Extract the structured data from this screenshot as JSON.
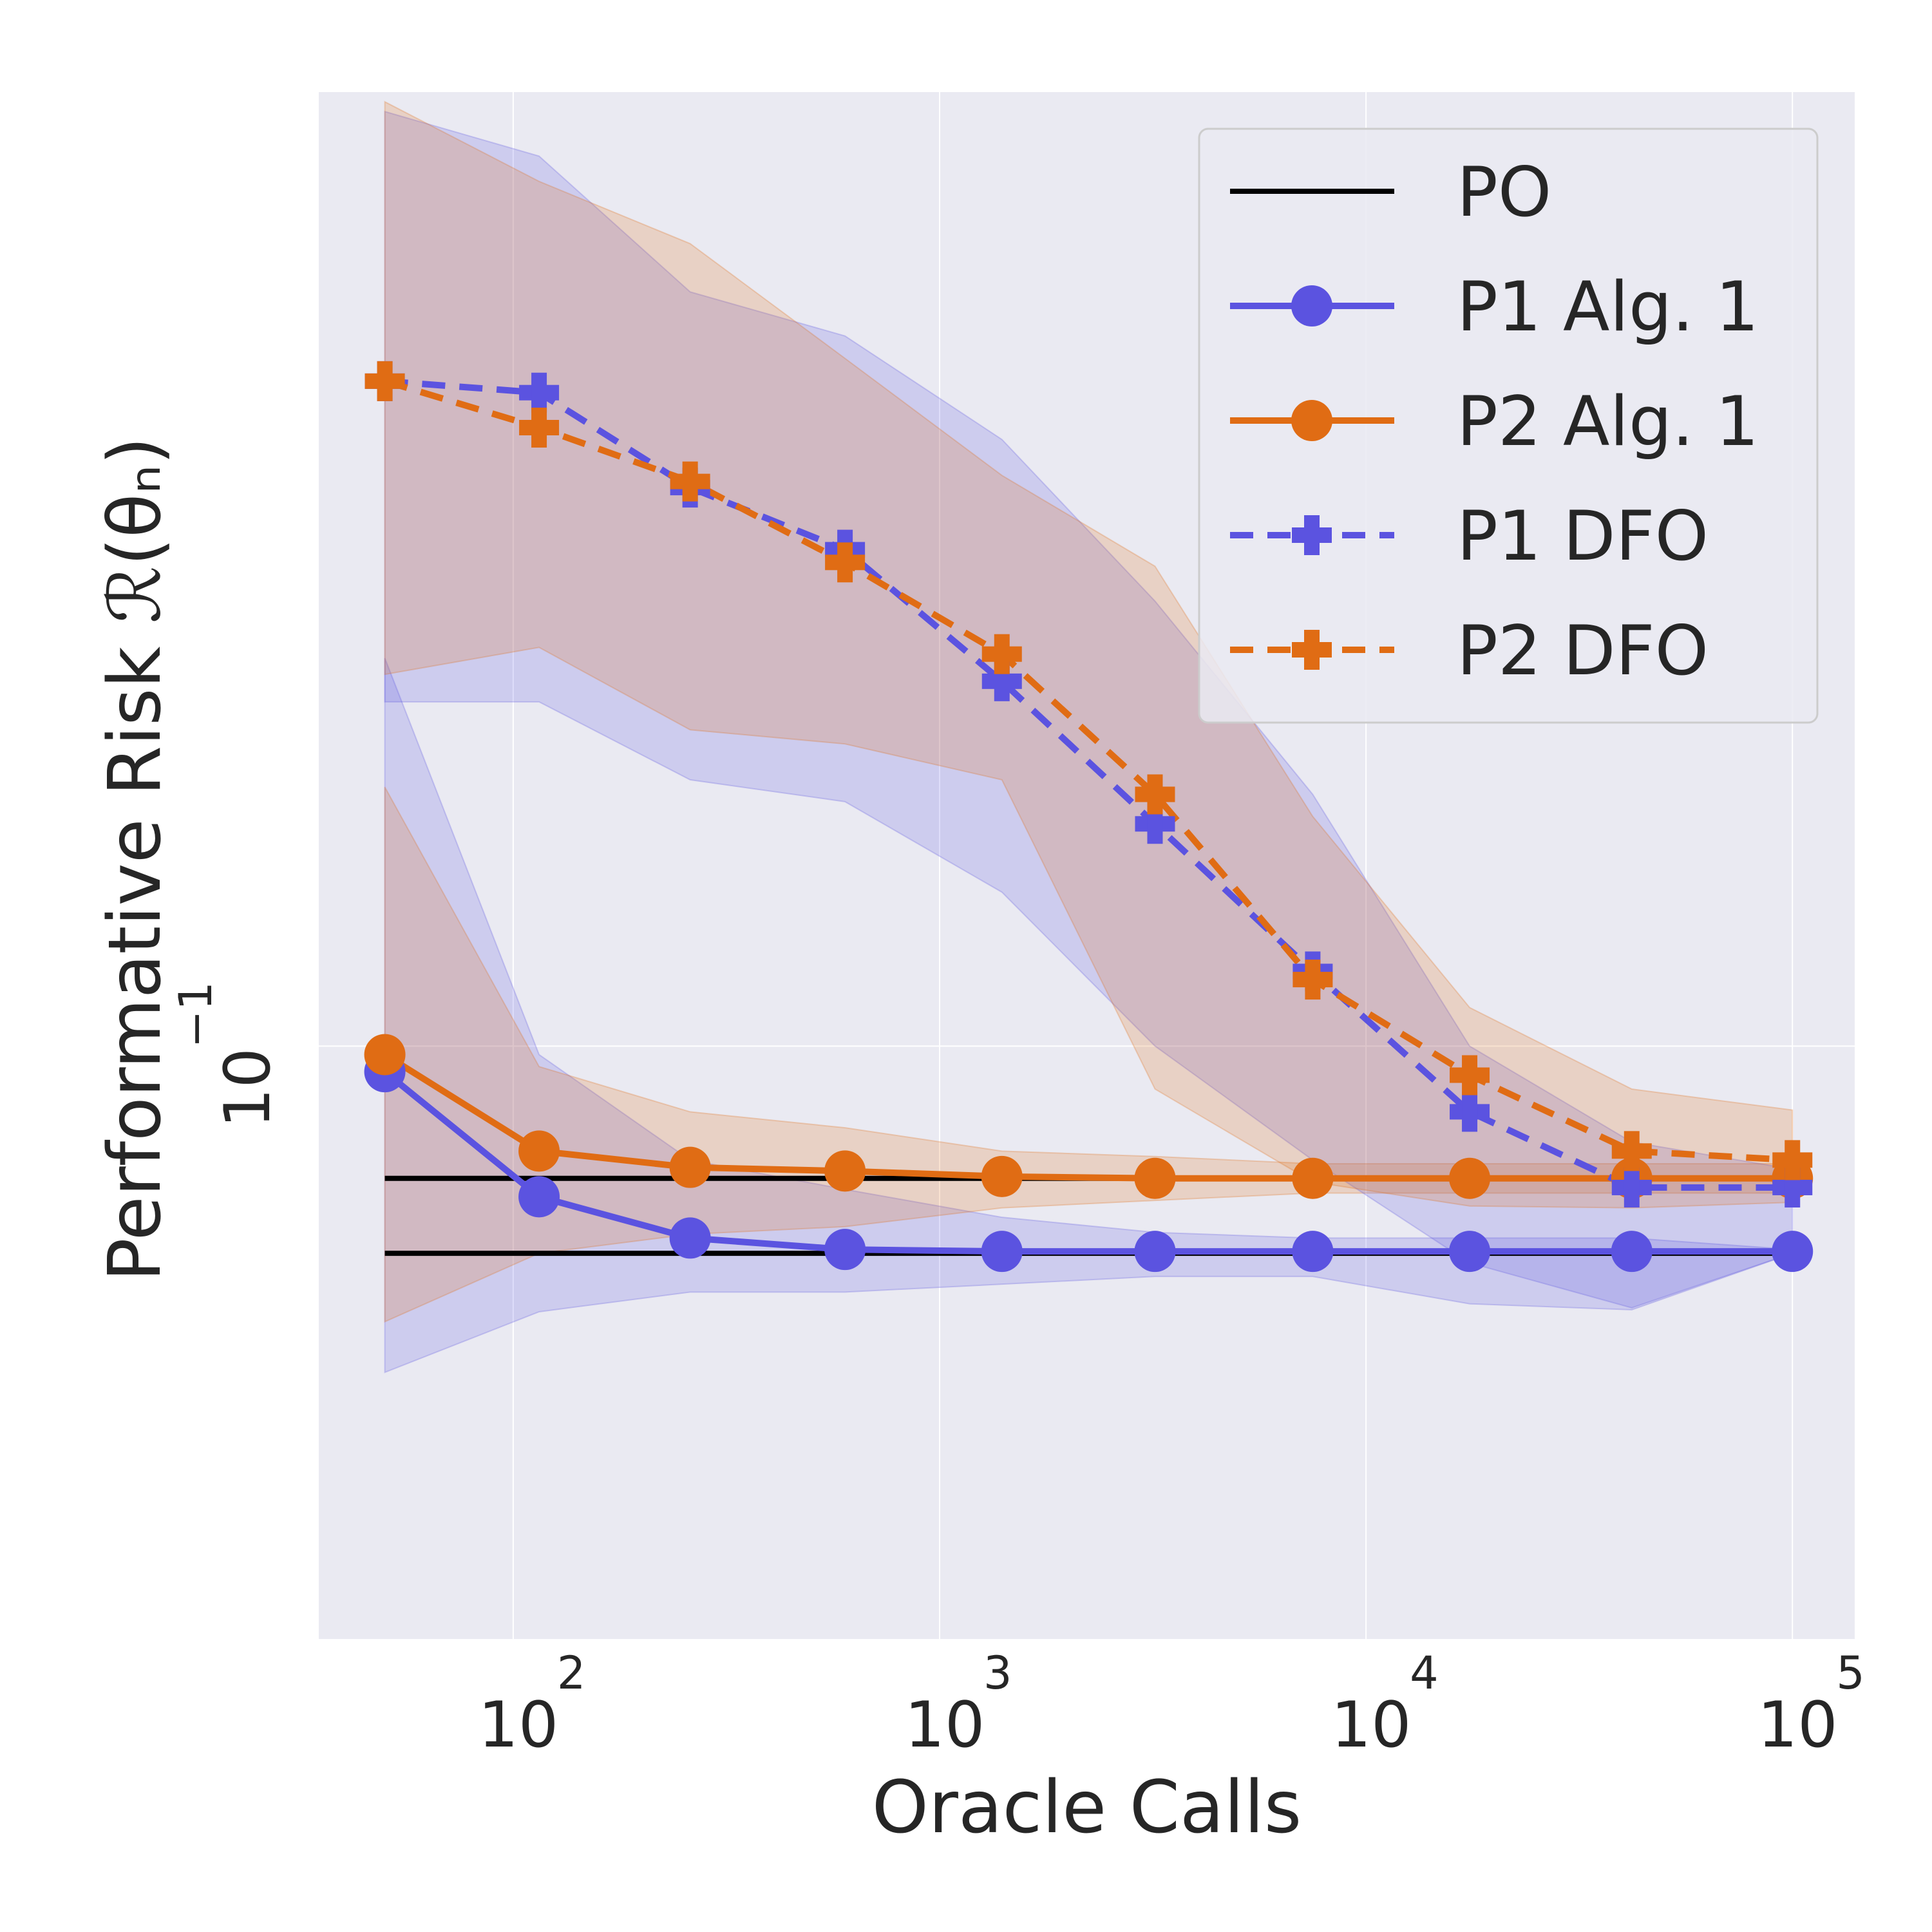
{
  "chart_data": {
    "type": "line",
    "xlabel": "Oracle Calls",
    "ylabel": "Performative Risk  ℛ(θₙ)",
    "x_scale": "log",
    "y_scale": "log",
    "xlim": [
      35,
      140000
    ],
    "ylim": [
      0.0705,
      0.1755
    ],
    "grid": true,
    "legend_position": "top-right",
    "x_ticks": [
      {
        "value": 100,
        "base": "10",
        "exp": "2"
      },
      {
        "value": 1000,
        "base": "10",
        "exp": "3"
      },
      {
        "value": 10000,
        "base": "10",
        "exp": "4"
      },
      {
        "value": 100000,
        "base": "10",
        "exp": "5"
      }
    ],
    "y_ticks": [
      {
        "value": 0.1,
        "base": "10",
        "exp": "−1"
      }
    ],
    "x": [
      50,
      115,
      260,
      600,
      1400,
      3200,
      7500,
      17500,
      42000,
      100000
    ],
    "po_lines": [
      {
        "series": "PO",
        "y": 0.0925,
        "x_range": [
          50,
          100000
        ]
      },
      {
        "series": "PO",
        "y": 0.0885,
        "x_range": [
          50,
          100000
        ]
      }
    ],
    "series": [
      {
        "name": "PO",
        "color": "#000000",
        "style": "solid",
        "marker": "none",
        "legend_only": true
      },
      {
        "name": "P1 Alg. 1",
        "color": "#5b53e0",
        "style": "solid",
        "marker": "circle",
        "values": [
          0.0985,
          0.0915,
          0.0893,
          0.0887,
          0.0886,
          0.0886,
          0.0886,
          0.0886,
          0.0886,
          0.0886
        ],
        "band_low": [
          0.0825,
          0.0855,
          0.0865,
          0.0865,
          0.0869,
          0.0873,
          0.0873,
          0.0859,
          0.0856,
          0.0885
        ],
        "band_high": [
          0.1257,
          0.0995,
          0.0935,
          0.0919,
          0.0904,
          0.0896,
          0.0893,
          0.0893,
          0.0893,
          0.0887
        ]
      },
      {
        "name": "P2 Alg. 1",
        "color": "#e06c14",
        "style": "solid",
        "marker": "circle",
        "values": [
          0.0995,
          0.094,
          0.0931,
          0.0929,
          0.0926,
          0.0925,
          0.0925,
          0.0925,
          0.0925,
          0.0925
        ],
        "band_low": [
          0.085,
          0.0885,
          0.0895,
          0.0899,
          0.0909,
          0.0913,
          0.0917,
          0.0917,
          0.0917,
          0.0917
        ],
        "band_high": [
          0.1165,
          0.0988,
          0.0962,
          0.0953,
          0.094,
          0.0937,
          0.0933,
          0.0933,
          0.0933,
          0.0933
        ]
      },
      {
        "name": "P1 DFO",
        "color": "#5b53e0",
        "style": "dashed",
        "marker": "plus",
        "values": [
          0.148,
          0.147,
          0.139,
          0.134,
          0.124,
          0.114,
          0.1045,
          0.0962,
          0.092,
          0.092
        ],
        "band_low": [
          0.1225,
          0.1225,
          0.117,
          0.1155,
          0.1095,
          0.1,
          0.0935,
          0.088,
          0.0857,
          0.0885
        ],
        "band_high": [
          0.1735,
          0.169,
          0.156,
          0.152,
          0.143,
          0.13,
          0.116,
          0.1,
          0.0945,
          0.093
        ]
      },
      {
        "name": "P2 DFO",
        "color": "#e06c14",
        "style": "dashed",
        "marker": "plus",
        "values": [
          0.148,
          0.144,
          0.1395,
          0.133,
          0.126,
          0.116,
          0.104,
          0.0983,
          0.094,
          0.0935
        ],
        "band_low": [
          0.1245,
          0.1265,
          0.1205,
          0.1195,
          0.117,
          0.0975,
          0.0923,
          0.091,
          0.0909,
          0.0912
        ],
        "band_high": [
          0.1745,
          0.1665,
          0.1605,
          0.15,
          0.14,
          0.1327,
          0.1145,
          0.1023,
          0.0975,
          0.0963
        ]
      }
    ]
  }
}
